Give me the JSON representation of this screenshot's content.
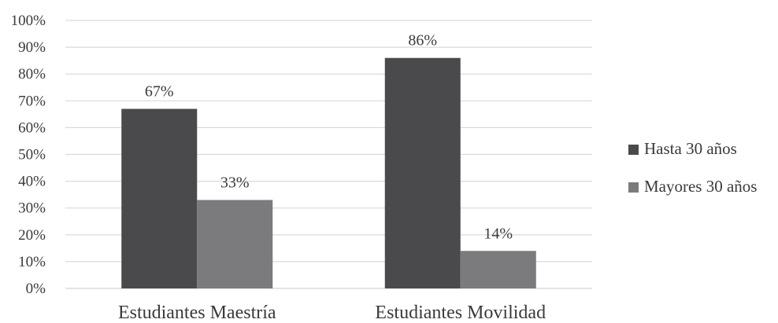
{
  "chart_data": {
    "type": "bar",
    "categories": [
      "Estudiantes Maestría",
      "Estudiantes Movilidad"
    ],
    "series": [
      {
        "name": "Hasta 30 años",
        "values": [
          67,
          86
        ],
        "color": "#4a4a4c"
      },
      {
        "name": "Mayores 30 años",
        "values": [
          33,
          14
        ],
        "color": "#7b7b7d"
      }
    ],
    "data_labels": [
      [
        "67%",
        "86%"
      ],
      [
        "33%",
        "14%"
      ]
    ],
    "y_ticks": [
      "0%",
      "10%",
      "20%",
      "30%",
      "40%",
      "50%",
      "60%",
      "70%",
      "80%",
      "90%",
      "100%"
    ],
    "ylim": [
      0,
      100
    ],
    "grid": true,
    "legend_position": "right",
    "gridline_color": "#d9d9d9"
  }
}
